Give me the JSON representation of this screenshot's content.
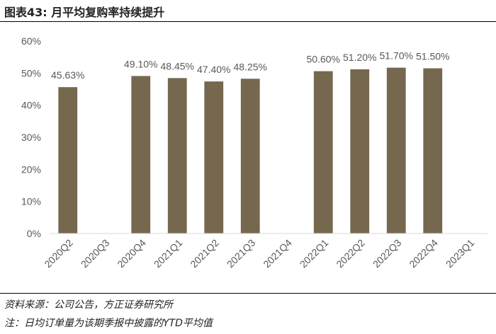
{
  "figure": {
    "title": "图表43: 月平均复购率持续提升",
    "source": "资料来源：公司公告，方正证券研究所",
    "note": "注：日均订单量为该期季报中披露的YTD平均值"
  },
  "colors": {
    "bar": "#76674f",
    "text": "#595959",
    "axis": "#d9d9d9"
  },
  "chart_data": {
    "type": "bar",
    "title": "",
    "xlabel": "",
    "ylabel": "",
    "categories": [
      "2020Q2",
      "2020Q3",
      "2020Q4",
      "2021Q1",
      "2021Q2",
      "2021Q3",
      "2021Q4",
      "2022Q1",
      "2022Q2",
      "2022Q3",
      "2022Q4",
      "2023Q1"
    ],
    "values": [
      45.63,
      null,
      49.1,
      48.45,
      47.4,
      48.25,
      null,
      50.6,
      51.2,
      51.7,
      51.5,
      null
    ],
    "data_labels": [
      "45.63%",
      "",
      "49.10%",
      "48.45%",
      "47.40%",
      "48.25%",
      "",
      "50.60%",
      "51.20%",
      "51.70%",
      "51.50%",
      ""
    ],
    "yticks": [
      "0%",
      "10%",
      "20%",
      "30%",
      "40%",
      "50%",
      "60%"
    ],
    "ylim": [
      0,
      60
    ],
    "grid": false,
    "legend": "none"
  }
}
